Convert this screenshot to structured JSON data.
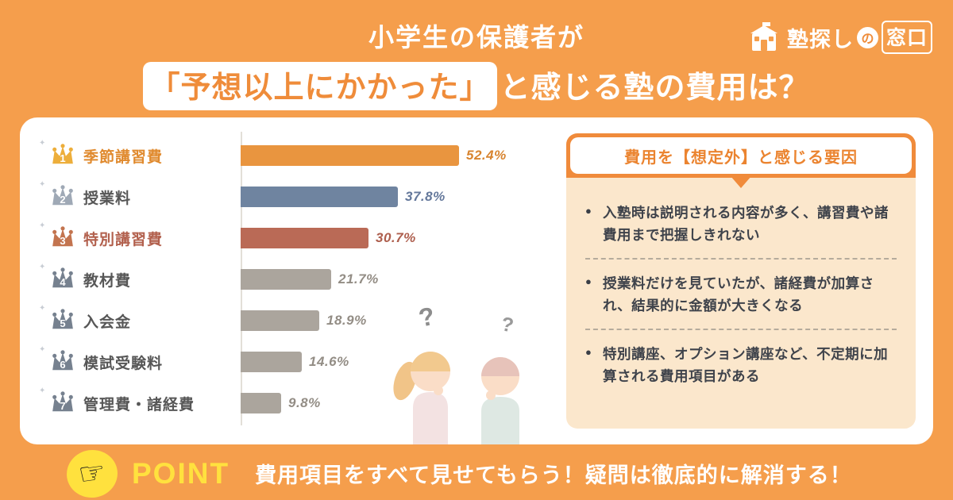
{
  "theme": {
    "background_orange": "#F59E4C",
    "card_white": "#FFFFFF",
    "panel_orange": "#F08B3B",
    "panel_body_cream": "#FBE7CC",
    "highlight_text_orange": "#EF8C3A",
    "point_yellow": "#FFE13E",
    "text_dark": "#3F434B"
  },
  "logo": {
    "name_part1": "塾探し",
    "name_no": "の",
    "name_part2": "窓口"
  },
  "header": {
    "line1": "小学生の保護者が",
    "line2_highlight": "「予想以上にかかった」",
    "line2_rest": "と感じる塾の費用は？"
  },
  "chart_data": {
    "type": "bar",
    "orientation": "horizontal",
    "title": "小学生の保護者が「予想以上にかかった」と感じる塾の費用は？",
    "categories": [
      "季節講習費",
      "授業料",
      "特別講習費",
      "教材費",
      "入会金",
      "模試受験料",
      "管理費・諸経費"
    ],
    "values": [
      52.4,
      37.8,
      30.7,
      21.7,
      18.9,
      14.6,
      9.8
    ],
    "value_labels": [
      "52.4%",
      "37.8%",
      "30.7%",
      "21.7%",
      "18.9%",
      "14.6%",
      "9.8%"
    ],
    "ranks": [
      "1",
      "2",
      "3",
      "4",
      "5",
      "6",
      "7"
    ],
    "unit": "%",
    "xlim": [
      0,
      55
    ],
    "legend": "none",
    "grid": "single-baseline",
    "bar_colors": [
      "#E9953F",
      "#6F84A0",
      "#BA6A56",
      "#ABA59D",
      "#ABA59D",
      "#ABA59D",
      "#ABA59D"
    ],
    "label_colors": [
      "#E08A2E",
      "#575757",
      "#B2604D",
      "#575757",
      "#575757",
      "#575757",
      "#575757"
    ],
    "value_label_colors": [
      "#D8842F",
      "#64789B",
      "#AE5F4E",
      "#938D85",
      "#938D85",
      "#938D85",
      "#938D85"
    ],
    "crown_colors": [
      "#EDAE3B",
      "#9FA9B6",
      "#C3744F",
      "#76818F",
      "#76818F",
      "#76818F",
      "#76818F"
    ]
  },
  "factors_panel": {
    "title": "費用を【想定外】と感じる要因",
    "bullet": "●",
    "items": [
      "入塾時は説明される内容が多く、講習費や諸費用まで把握しきれない",
      "授業料だけを見ていたが、諸経費が加算され、結果的に金額が大きくなる",
      "特別講座、オプション講座など、不定期に加算される費用項目がある"
    ]
  },
  "point": {
    "label": "POINT",
    "message": "費用項目をすべて見せてもらう！疑問は徹底的に解消する！"
  }
}
